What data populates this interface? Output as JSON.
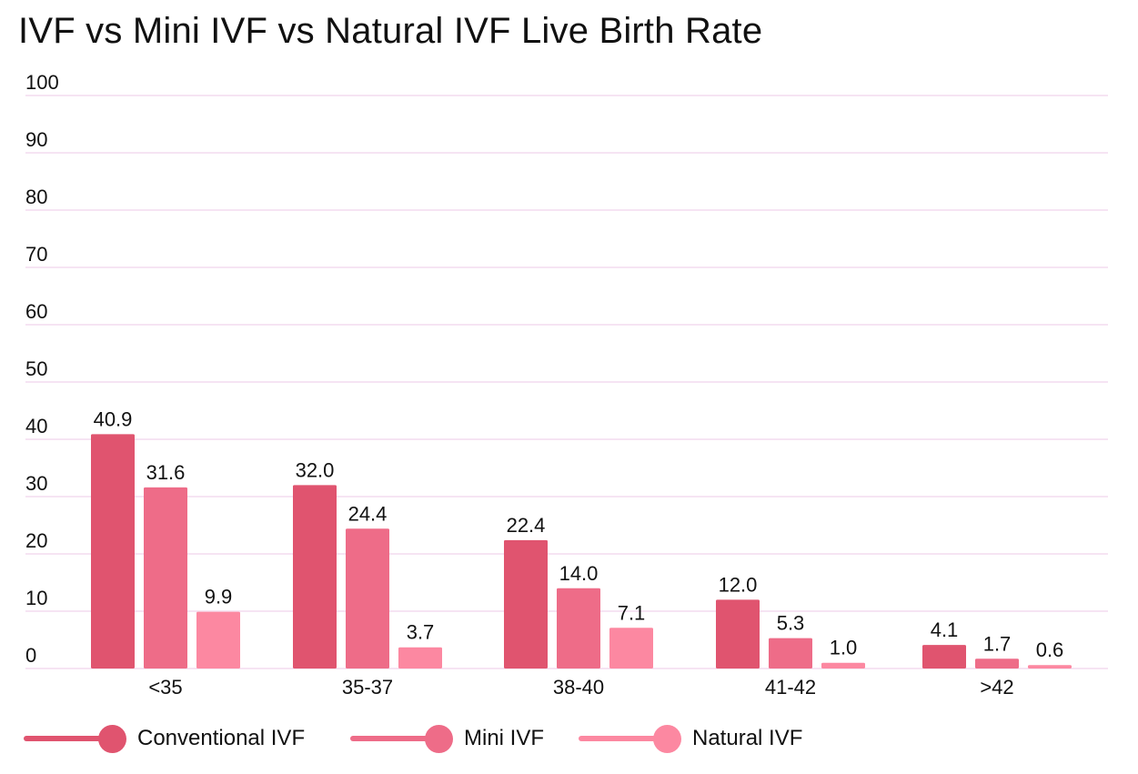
{
  "chart_data": {
    "type": "bar",
    "title": "IVF vs Mini IVF vs Natural IVF Live Birth Rate",
    "xlabel": "",
    "ylabel": "",
    "ylim": [
      0,
      100
    ],
    "yticks": [
      0,
      10,
      20,
      30,
      40,
      50,
      60,
      70,
      80,
      90,
      100
    ],
    "grid": true,
    "legend_position": "bottom-left",
    "categories": [
      "<35",
      "35-37",
      "38-40",
      "41-42",
      ">42"
    ],
    "series": [
      {
        "name": "Conventional IVF",
        "color": "#e0546f",
        "values": [
          40.9,
          32.0,
          22.4,
          12.0,
          4.1
        ],
        "labels": [
          "40.9",
          "32.0",
          "22.4",
          "12.0",
          "4.1"
        ]
      },
      {
        "name": "Mini IVF",
        "color": "#ee6c88",
        "values": [
          31.6,
          24.4,
          14.0,
          5.3,
          1.7
        ],
        "labels": [
          "31.6",
          "24.4",
          "14.0",
          "5.3",
          "1.7"
        ]
      },
      {
        "name": "Natural IVF",
        "color": "#fc88a1",
        "values": [
          9.9,
          3.7,
          7.1,
          1.0,
          0.6
        ],
        "labels": [
          "9.9",
          "3.7",
          "7.1",
          "1.0",
          "0.6"
        ]
      }
    ]
  },
  "colors": {
    "grid": "#f6e4f3",
    "text": "#111111"
  }
}
